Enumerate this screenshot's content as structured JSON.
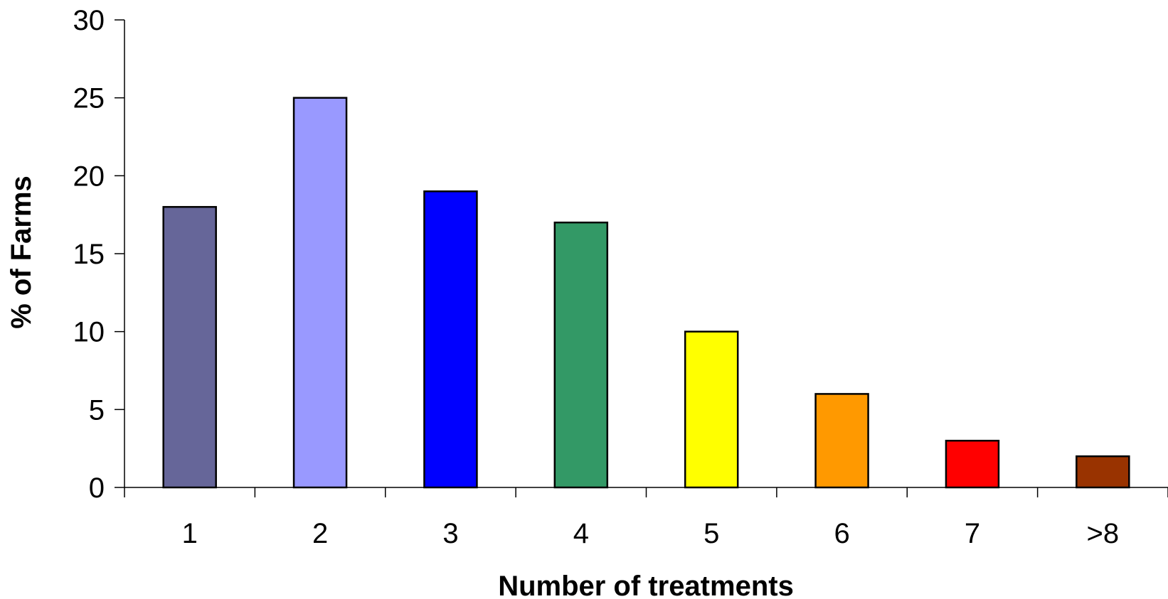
{
  "chart_data": {
    "type": "bar",
    "title": "",
    "xlabel": "Number of treatments",
    "ylabel": "% of Farms",
    "categories": [
      "1",
      "2",
      "3",
      "4",
      "5",
      "6",
      "7",
      ">8"
    ],
    "values": [
      18,
      25,
      19,
      17,
      10,
      6,
      3,
      2
    ],
    "colors": [
      "#666699",
      "#9999FF",
      "#0000FF",
      "#339966",
      "#FFFF00",
      "#FF9900",
      "#FF0000",
      "#993300"
    ],
    "ylim": [
      0,
      30
    ],
    "yticks": [
      0,
      5,
      10,
      15,
      20,
      25,
      30
    ],
    "grid": false,
    "legend": "none"
  }
}
